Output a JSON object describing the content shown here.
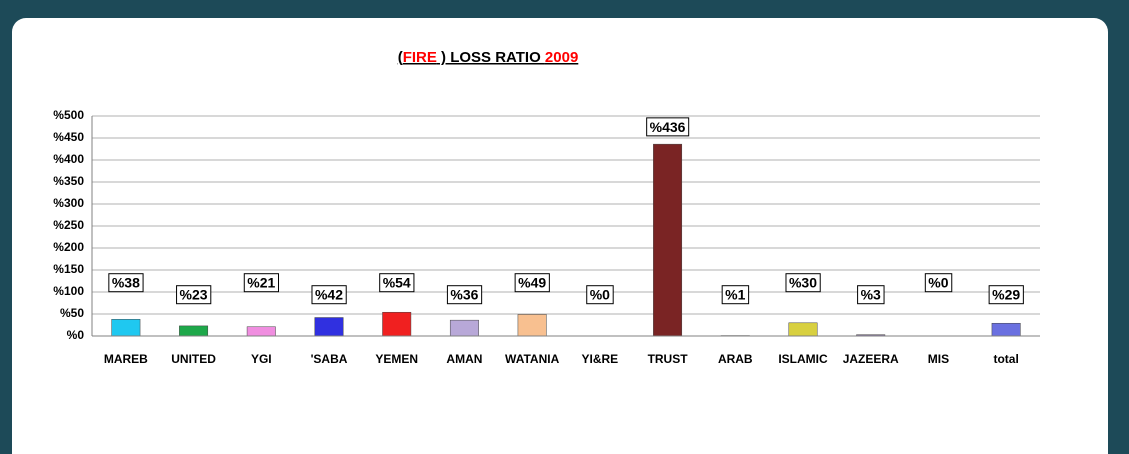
{
  "chart_data": {
    "type": "bar",
    "title": [
      "(",
      "FIRE",
      " ) LOSS RATIO ",
      "2009"
    ],
    "title_colors": [
      "#000000",
      "#ff0000",
      "#000000",
      "#ff0000"
    ],
    "categories": [
      "MAREB",
      "UNITED",
      "YGI",
      "'SABA",
      "YEMEN",
      "AMAN",
      "WATANIA",
      "YI&RE",
      "TRUST",
      "ARAB",
      "ISLAMIC",
      "JAZEERA",
      "MIS",
      "total"
    ],
    "values": [
      38,
      23,
      21,
      42,
      54,
      36,
      49,
      0,
      436,
      1,
      30,
      3,
      0,
      29
    ],
    "value_labels": [
      "%38",
      "%23",
      "%21",
      "%42",
      "%54",
      "%36",
      "%49",
      "%0",
      "%436",
      "%1",
      "%30",
      "%3",
      "%0",
      "%29"
    ],
    "colors": [
      "#1fc8f0",
      "#1ea84a",
      "#f08ee0",
      "#3030e0",
      "#f02020",
      "#b8a8d8",
      "#f8c090",
      "#a0a0a0",
      "#7a2424",
      "#f0a020",
      "#d8d040",
      "#8878a0",
      "#a0a0a0",
      "#6a70e0"
    ],
    "ylim": [
      0,
      500
    ],
    "yticks": [
      {
        "value": 0,
        "label": "%0"
      },
      {
        "value": 50,
        "label": "%50"
      },
      {
        "value": 100,
        "label": "%100"
      },
      {
        "value": 150,
        "label": "%150"
      },
      {
        "value": 200,
        "label": "%200"
      },
      {
        "value": 250,
        "label": "%250"
      },
      {
        "value": 300,
        "label": "%300"
      },
      {
        "value": 350,
        "label": "%350"
      },
      {
        "value": 400,
        "label": "%400"
      },
      {
        "value": 450,
        "label": "%450"
      },
      {
        "value": 500,
        "label": "%500"
      }
    ],
    "grid": true
  }
}
